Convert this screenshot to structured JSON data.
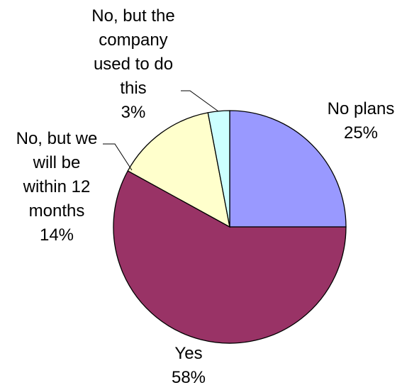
{
  "chart_data": {
    "type": "pie",
    "title": "",
    "start_angle_deg": 0,
    "direction": "clockwise",
    "slices": [
      {
        "label_lines": [
          "No plans"
        ],
        "label": "No plans",
        "value": 25,
        "value_label": "25%",
        "color": "#9999ff"
      },
      {
        "label_lines": [
          "Yes"
        ],
        "label": "Yes",
        "value": 58,
        "value_label": "58%",
        "color": "#993366"
      },
      {
        "label_lines": [
          "No, but we",
          "will be",
          "within 12",
          "months"
        ],
        "label": "No, but we will be within 12 months",
        "value": 14,
        "value_label": "14%",
        "color": "#ffffcc"
      },
      {
        "label_lines": [
          "No, but the",
          "company",
          "used to do",
          "this"
        ],
        "label": "No, but the company used to do this",
        "value": 3,
        "value_label": "3%",
        "color": "#ccffff"
      }
    ],
    "legend": "none",
    "data_labels": "outside with category name and percentage"
  }
}
